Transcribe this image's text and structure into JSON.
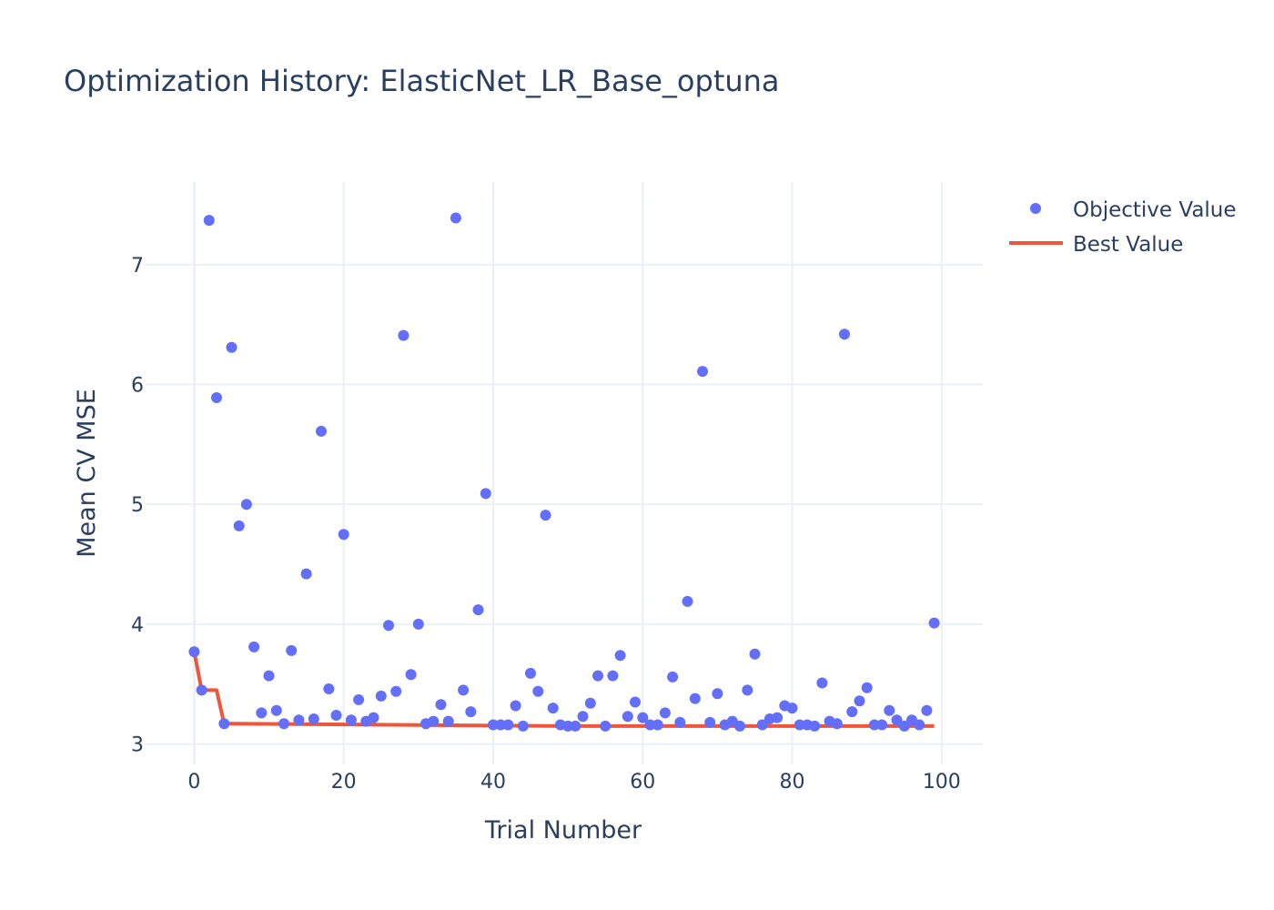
{
  "colors": {
    "objective": "#636efa",
    "best": "#ef553b",
    "text": "#2a3f5f",
    "grid": "#ebf0f8"
  },
  "chart_data": {
    "type": "scatter",
    "title": "Optimization History: ElasticNet_LR_Base_optuna",
    "xlabel": "Trial Number",
    "ylabel": "Mean CV MSE",
    "xlim": [
      -6.5,
      105.5
    ],
    "ylim": [
      2.83,
      7.69
    ],
    "xticks": [
      0,
      20,
      40,
      60,
      80,
      100
    ],
    "yticks": [
      3,
      4,
      5,
      6,
      7
    ],
    "grid": true,
    "legend_position": "top-right",
    "series": [
      {
        "name": "Objective Value",
        "mode": "markers",
        "x": [
          0,
          1,
          2,
          3,
          4,
          5,
          6,
          7,
          8,
          9,
          10,
          11,
          12,
          13,
          14,
          15,
          16,
          17,
          18,
          19,
          20,
          21,
          22,
          23,
          24,
          25,
          26,
          27,
          28,
          29,
          30,
          31,
          32,
          33,
          34,
          35,
          36,
          37,
          38,
          39,
          40,
          41,
          42,
          43,
          44,
          45,
          46,
          47,
          48,
          49,
          50,
          51,
          52,
          53,
          54,
          55,
          56,
          57,
          58,
          59,
          60,
          61,
          62,
          63,
          64,
          65,
          66,
          67,
          68,
          69,
          70,
          71,
          72,
          73,
          74,
          75,
          76,
          77,
          78,
          79,
          80,
          81,
          82,
          83,
          84,
          85,
          86,
          87,
          88,
          89,
          90,
          91,
          92,
          93,
          94,
          95,
          96,
          97,
          98,
          99
        ],
        "y": [
          3.77,
          3.45,
          7.37,
          5.89,
          3.17,
          6.31,
          4.82,
          5.0,
          3.81,
          3.26,
          3.57,
          3.28,
          3.17,
          3.78,
          3.2,
          4.42,
          3.21,
          5.61,
          3.46,
          3.24,
          4.75,
          3.2,
          3.37,
          3.19,
          3.22,
          3.4,
          3.99,
          3.44,
          6.41,
          3.58,
          4.0,
          3.17,
          3.19,
          3.33,
          3.19,
          7.39,
          3.45,
          3.27,
          4.12,
          5.09,
          3.16,
          3.16,
          3.16,
          3.32,
          3.15,
          3.59,
          3.44,
          4.91,
          3.3,
          3.16,
          3.15,
          3.15,
          3.23,
          3.34,
          3.57,
          3.15,
          3.57,
          3.74,
          3.23,
          3.35,
          3.22,
          3.16,
          3.16,
          3.26,
          3.56,
          3.18,
          4.19,
          3.38,
          6.11,
          3.18,
          3.42,
          3.16,
          3.19,
          3.15,
          3.45,
          3.75,
          3.16,
          3.21,
          3.22,
          3.32,
          3.3,
          3.16,
          3.16,
          3.15,
          3.51,
          3.19,
          3.17,
          6.42,
          3.27,
          3.36,
          3.47,
          3.16,
          3.16,
          3.28,
          3.2,
          3.15,
          3.2,
          3.16,
          3.28,
          4.01
        ]
      },
      {
        "name": "Best Value",
        "mode": "lines",
        "x": [
          0,
          1,
          3,
          4,
          50,
          99
        ],
        "y": [
          3.77,
          3.45,
          3.45,
          3.17,
          3.15,
          3.15
        ]
      }
    ]
  }
}
